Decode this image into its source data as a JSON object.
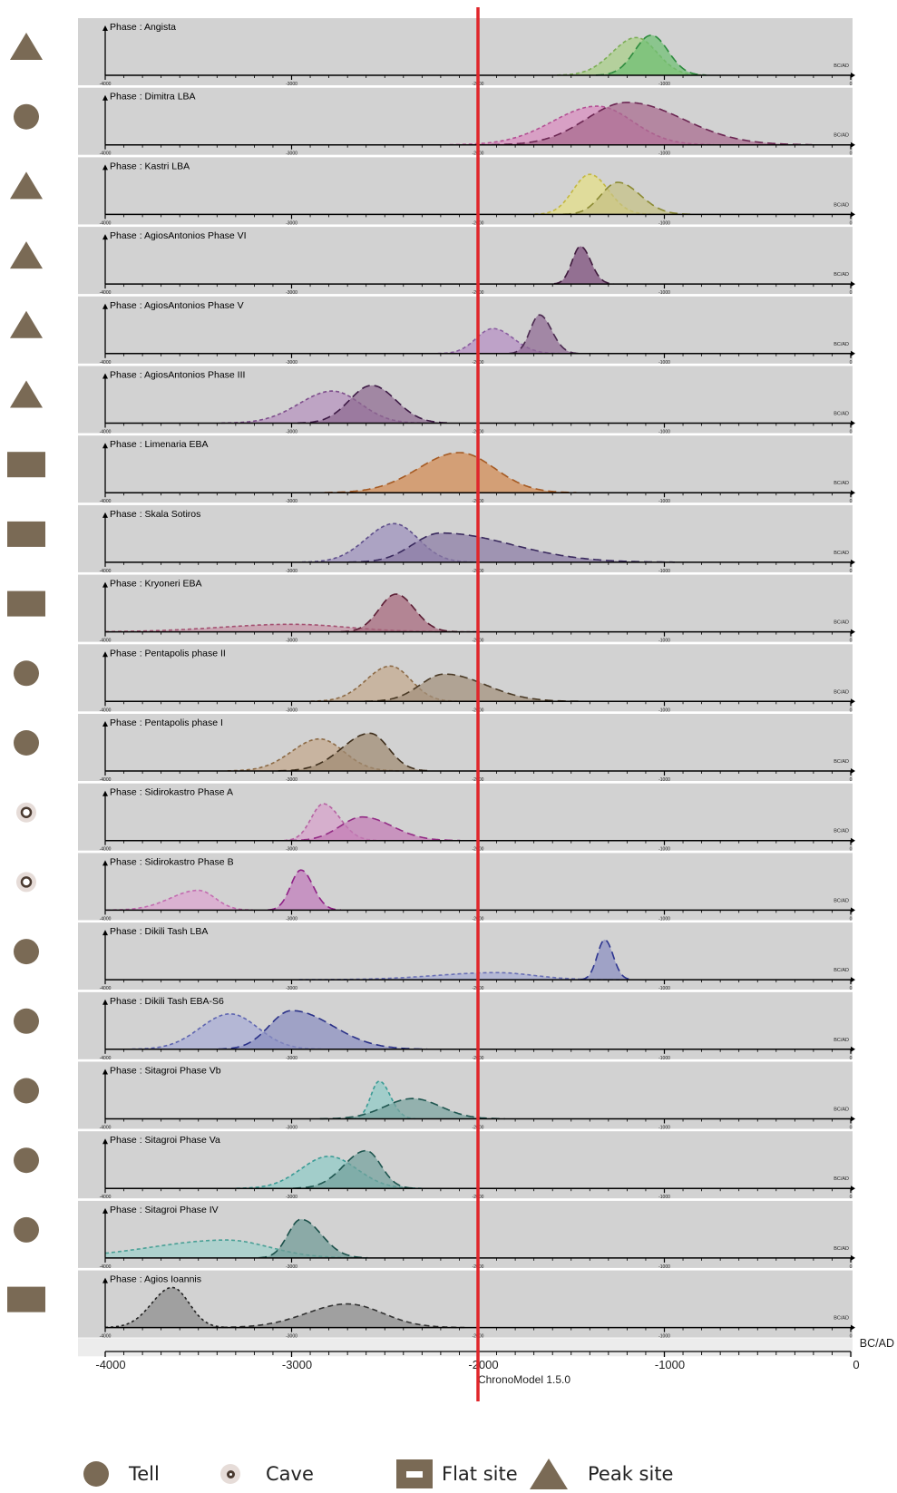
{
  "chart_data": {
    "type": "area",
    "software": "ChronoModel 1.5.0",
    "x_unit_label": "BC/AD",
    "xlim": [
      -4000,
      0
    ],
    "reference_line_x": -2000,
    "panel_tick_labels": [
      "-4000",
      "-3000",
      "-2000",
      "-1000",
      "0"
    ],
    "axis_tick_labels": [
      "-4000",
      "-3000",
      "-2000",
      "-1000",
      "0"
    ],
    "panels": [
      {
        "title": "Phase : Angista",
        "site_type": "peak",
        "series": [
          {
            "peak_x": -1150,
            "sd_left": 130,
            "sd_right": 110,
            "height": 0.8,
            "fill": "#a8cf86",
            "stroke": "#7cad56",
            "dash": "4,3"
          },
          {
            "peak_x": -1070,
            "sd_left": 90,
            "sd_right": 90,
            "height": 0.85,
            "fill": "#6fbf73",
            "stroke": "#2e8b3e",
            "dash": "9,5"
          }
        ]
      },
      {
        "title": "Phase : Dimitra LBA",
        "site_type": "tell",
        "series": [
          {
            "peak_x": -1360,
            "sd_left": 240,
            "sd_right": 190,
            "height": 0.82,
            "fill": "#d98cbf",
            "stroke": "#b34f93",
            "dash": "4,3"
          },
          {
            "peak_x": -1200,
            "sd_left": 220,
            "sd_right": 300,
            "height": 0.9,
            "fill": "#a86a8d",
            "stroke": "#6b2652",
            "dash": "9,5"
          }
        ]
      },
      {
        "title": "Phase : Kastri LBA",
        "site_type": "peak",
        "series": [
          {
            "peak_x": -1400,
            "sd_left": 90,
            "sd_right": 100,
            "height": 0.85,
            "fill": "#e4df85",
            "stroke": "#c4b842",
            "dash": "4,3"
          },
          {
            "peak_x": -1250,
            "sd_left": 90,
            "sd_right": 120,
            "height": 0.68,
            "fill": "#c5c083",
            "stroke": "#8b8a33",
            "dash": "9,5"
          }
        ]
      },
      {
        "title": "Phase : AgiosAntonios Phase VI",
        "site_type": "peak",
        "series": [
          {
            "peak_x": -1450,
            "sd_left": 45,
            "sd_right": 55,
            "height": 0.8,
            "fill": "#7a4a78",
            "stroke": "#3f1a3d",
            "dash": "9,5"
          }
        ]
      },
      {
        "title": "Phase : AgiosAntonios Phase V",
        "site_type": "peak",
        "series": [
          {
            "peak_x": -1920,
            "sd_left": 90,
            "sd_right": 110,
            "height": 0.53,
            "fill": "#b58fc3",
            "stroke": "#8a5ea0",
            "dash": "4,3"
          },
          {
            "peak_x": -1670,
            "sd_left": 50,
            "sd_right": 65,
            "height": 0.82,
            "fill": "#8f6a93",
            "stroke": "#4a2a4f",
            "dash": "9,5"
          }
        ]
      },
      {
        "title": "Phase : AgiosAntonios Phase III",
        "site_type": "peak",
        "series": [
          {
            "peak_x": -2780,
            "sd_left": 180,
            "sd_right": 150,
            "height": 0.68,
            "fill": "#b592be",
            "stroke": "#7e4e8c",
            "dash": "4,3"
          },
          {
            "peak_x": -2570,
            "sd_left": 120,
            "sd_right": 130,
            "height": 0.8,
            "fill": "#8e6a90",
            "stroke": "#3d1a45",
            "dash": "9,5"
          }
        ]
      },
      {
        "title": "Phase : Limenaria EBA",
        "site_type": "flat",
        "series": [
          {
            "peak_x": -2100,
            "sd_left": 220,
            "sd_right": 190,
            "height": 0.85,
            "fill": "#d28a52",
            "stroke": "#a55a23",
            "dash": "9,5"
          }
        ]
      },
      {
        "title": "Phase : Skala Sotiros",
        "site_type": "flat",
        "series": [
          {
            "peak_x": -2450,
            "sd_left": 150,
            "sd_right": 130,
            "height": 0.82,
            "fill": "#9d90bd",
            "stroke": "#5e4e8a",
            "dash": "4,3"
          },
          {
            "peak_x": -2200,
            "sd_left": 150,
            "sd_right": 380,
            "height": 0.62,
            "fill": "#8a7ba5",
            "stroke": "#3a2a5e",
            "dash": "9,5"
          }
        ]
      },
      {
        "title": "Phase : Kryoneri EBA",
        "site_type": "flat",
        "series": [
          {
            "peak_x": -3000,
            "sd_left": 380,
            "sd_right": 300,
            "height": 0.16,
            "fill": "#c797a9",
            "stroke": "#a45272",
            "dash": "4,3"
          },
          {
            "peak_x": -2440,
            "sd_left": 90,
            "sd_right": 100,
            "height": 0.8,
            "fill": "#a6677c",
            "stroke": "#5c1f35",
            "dash": "9,5"
          }
        ]
      },
      {
        "title": "Phase : Pentapolis phase II",
        "site_type": "tell",
        "series": [
          {
            "peak_x": -2470,
            "sd_left": 130,
            "sd_right": 110,
            "height": 0.75,
            "fill": "#c4a98d",
            "stroke": "#8c6a45",
            "dash": "4,3"
          },
          {
            "peak_x": -2180,
            "sd_left": 130,
            "sd_right": 220,
            "height": 0.58,
            "fill": "#a2907c",
            "stroke": "#4a3a26",
            "dash": "9,5"
          }
        ]
      },
      {
        "title": "Phase : Pentapolis phase I",
        "site_type": "tell",
        "series": [
          {
            "peak_x": -2850,
            "sd_left": 150,
            "sd_right": 130,
            "height": 0.68,
            "fill": "#c4a88c",
            "stroke": "#8c6a45",
            "dash": "4,3"
          },
          {
            "peak_x": -2580,
            "sd_left": 150,
            "sd_right": 100,
            "height": 0.8,
            "fill": "#a08a72",
            "stroke": "#3f2f1d",
            "dash": "9,5"
          }
        ]
      },
      {
        "title": "Phase : Sidirokastro Phase A",
        "site_type": "cave",
        "series": [
          {
            "peak_x": -2830,
            "sd_left": 65,
            "sd_right": 90,
            "height": 0.78,
            "fill": "#d7a1ca",
            "stroke": "#b664a3",
            "dash": "4,3"
          },
          {
            "peak_x": -2620,
            "sd_left": 120,
            "sd_right": 160,
            "height": 0.5,
            "fill": "#c47cb6",
            "stroke": "#932c85",
            "dash": "9,5"
          }
        ]
      },
      {
        "title": "Phase : Sidirokastro Phase B",
        "site_type": "cave",
        "series": [
          {
            "peak_x": -3500,
            "sd_left": 150,
            "sd_right": 90,
            "height": 0.42,
            "fill": "#dca5d0",
            "stroke": "#c26cb0",
            "dash": "4,3"
          },
          {
            "peak_x": -2950,
            "sd_left": 55,
            "sd_right": 65,
            "height": 0.85,
            "fill": "#c07cbb",
            "stroke": "#8f2186",
            "dash": "9,5"
          }
        ]
      },
      {
        "title": "Phase : Dikili Tash LBA",
        "site_type": "tell",
        "series": [
          {
            "peak_x": -1900,
            "sd_left": 320,
            "sd_right": 200,
            "height": 0.15,
            "fill": "#a9aed5",
            "stroke": "#6a70b5",
            "dash": "4,3"
          },
          {
            "peak_x": -1320,
            "sd_left": 40,
            "sd_right": 45,
            "height": 0.85,
            "fill": "#8a8fc0",
            "stroke": "#2d3590",
            "dash": "9,5"
          }
        ]
      },
      {
        "title": "Phase : Dikili Tash EBA-S6",
        "site_type": "tell",
        "series": [
          {
            "peak_x": -3330,
            "sd_left": 160,
            "sd_right": 150,
            "height": 0.75,
            "fill": "#a8acd5",
            "stroke": "#5e65b0",
            "dash": "4,3"
          },
          {
            "peak_x": -3000,
            "sd_left": 120,
            "sd_right": 220,
            "height": 0.82,
            "fill": "#8b8fc0",
            "stroke": "#2a3188",
            "dash": "9,5"
          }
        ]
      },
      {
        "title": "Phase : Sitagroi Phase Vb",
        "site_type": "tell",
        "series": [
          {
            "peak_x": -2530,
            "sd_left": 45,
            "sd_right": 60,
            "height": 0.8,
            "fill": "#8fcac6",
            "stroke": "#3a9b95",
            "dash": "4,3"
          },
          {
            "peak_x": -2350,
            "sd_left": 150,
            "sd_right": 150,
            "height": 0.43,
            "fill": "#7aa4a0",
            "stroke": "#1f5650",
            "dash": "9,5"
          }
        ]
      },
      {
        "title": "Phase : Sitagroi Phase Va",
        "site_type": "tell",
        "series": [
          {
            "peak_x": -2800,
            "sd_left": 150,
            "sd_right": 150,
            "height": 0.68,
            "fill": "#8fcac6",
            "stroke": "#3a9b95",
            "dash": "4,3"
          },
          {
            "peak_x": -2600,
            "sd_left": 120,
            "sd_right": 80,
            "height": 0.8,
            "fill": "#73a19d",
            "stroke": "#1f5650",
            "dash": "9,5"
          }
        ]
      },
      {
        "title": "Phase : Sitagroi Phase IV",
        "site_type": "tell",
        "series": [
          {
            "peak_x": -3350,
            "sd_left": 400,
            "sd_right": 230,
            "height": 0.38,
            "fill": "#9fd0ca",
            "stroke": "#4aa096",
            "dash": "4,3"
          },
          {
            "peak_x": -2950,
            "sd_left": 70,
            "sd_right": 110,
            "height": 0.82,
            "fill": "#6f9a95",
            "stroke": "#1a4f49",
            "dash": "9,5"
          }
        ]
      },
      {
        "title": "Phase : Agios Ioannis",
        "site_type": "flat",
        "series": [
          {
            "peak_x": -3640,
            "sd_left": 110,
            "sd_right": 90,
            "height": 0.85,
            "fill": "#8c8c8c",
            "stroke": "#222222",
            "dash": "3,3"
          },
          {
            "peak_x": -2700,
            "sd_left": 220,
            "sd_right": 190,
            "height": 0.5,
            "fill": "#8c8c8c",
            "stroke": "#333333",
            "dash": "6,4"
          }
        ]
      }
    ]
  },
  "legend": {
    "items": [
      {
        "symbol": "tell",
        "label": "Tell"
      },
      {
        "symbol": "cave",
        "label": "Cave"
      },
      {
        "symbol": "flat",
        "label": "Flat site"
      },
      {
        "symbol": "peak",
        "label": "Peak site"
      }
    ]
  },
  "colors": {
    "panel_bg": "#d2d2d2",
    "marker": "#7a6a55",
    "reference_line": "#e0262b"
  }
}
